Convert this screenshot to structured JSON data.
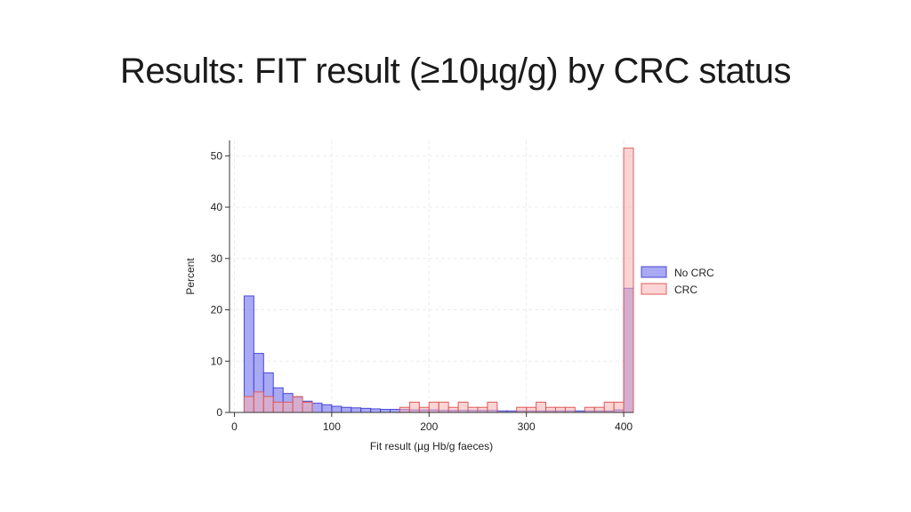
{
  "slide": {
    "title": "Results: FIT result (≥10µg/g) by CRC status"
  },
  "chart_data": {
    "type": "histogram",
    "xlabel": "Fit result (µg Hb/g faeces)",
    "ylabel": "Percent",
    "xlim": [
      -5,
      410
    ],
    "ylim": [
      0,
      53
    ],
    "xticks": [
      0,
      100,
      200,
      300,
      400
    ],
    "yticks": [
      0,
      10,
      20,
      30,
      40,
      50
    ],
    "grid": true,
    "legend_position": "right",
    "bin_start": 10,
    "bin_width": 10,
    "series": [
      {
        "name": "No CRC",
        "fill": "#8c8cf0",
        "stroke": "#4848d8",
        "values": [
          22.7,
          11.5,
          7.7,
          4.8,
          3.7,
          3.0,
          2.2,
          1.8,
          1.5,
          1.2,
          1.0,
          0.9,
          0.8,
          0.7,
          0.6,
          0.6,
          0.6,
          0.5,
          0.5,
          0.5,
          0.4,
          0.4,
          0.4,
          0.4,
          0.4,
          0.4,
          0.3,
          0.3,
          0.3,
          0.3,
          0.3,
          0.3,
          0.3,
          0.3,
          0.3,
          0.3,
          0.3,
          0.3,
          0.5,
          24.2
        ]
      },
      {
        "name": "CRC",
        "fill": "#f7b3b3",
        "stroke": "#e05a5a",
        "values": [
          3.1,
          4.0,
          3.1,
          2.0,
          2.0,
          3.1,
          2.0,
          0.0,
          0.0,
          0.0,
          0.0,
          0.0,
          0.0,
          0.0,
          0.0,
          0.0,
          1.0,
          2.0,
          1.0,
          2.0,
          2.0,
          1.0,
          2.0,
          1.0,
          1.0,
          2.0,
          0.0,
          0.0,
          1.0,
          1.0,
          2.0,
          1.0,
          1.0,
          1.0,
          0.0,
          1.0,
          1.0,
          2.0,
          2.0,
          51.5
        ]
      }
    ]
  }
}
